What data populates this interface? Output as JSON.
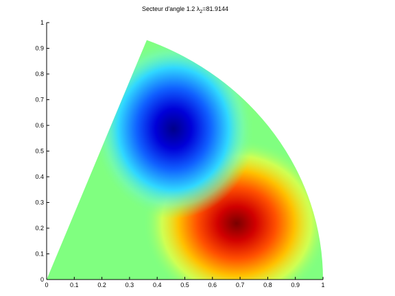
{
  "chart_data": {
    "type": "surface",
    "title_parts": [
      "Secteur d'angle 1.2 λ",
      "2",
      "=81.9144"
    ],
    "xlim": [
      0,
      1
    ],
    "ylim": [
      0,
      1
    ],
    "xticks": [
      0,
      0.1,
      0.2,
      0.3,
      0.4,
      0.5,
      0.6,
      0.7,
      0.8,
      0.9,
      1
    ],
    "yticks": [
      0,
      0.1,
      0.2,
      0.3,
      0.4,
      0.5,
      0.6,
      0.7,
      0.8,
      0.9,
      1
    ]
  }
}
